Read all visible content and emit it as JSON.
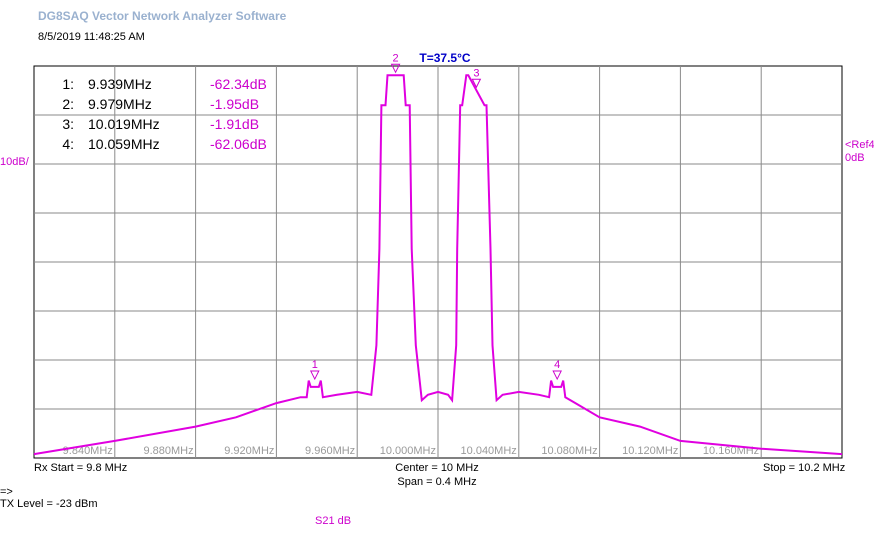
{
  "app_title": "DG8SAQ Vector Network Analyzer Software",
  "timestamp": "8/5/2019   11:48:25 AM",
  "temperature": "T=37.5°C",
  "scale_label": "10dB/",
  "ref_label": "<Ref4",
  "ref_value": "0dB",
  "markers": [
    {
      "num": "1:",
      "freq": "9.939MHz",
      "value": "-62.34dB",
      "label": "1",
      "x_mhz": 9.939
    },
    {
      "num": "2:",
      "freq": "9.979MHz",
      "value": "-1.95dB",
      "label": "2",
      "x_mhz": 9.979
    },
    {
      "num": "3:",
      "freq": "10.019MHz",
      "value": "-1.91dB",
      "label": "3",
      "x_mhz": 10.019
    },
    {
      "num": "4:",
      "freq": "10.059MHz",
      "value": "-62.06dB",
      "label": "4",
      "x_mhz": 10.059
    }
  ],
  "x_ticks": [
    "9.840MHz",
    "9.880MHz",
    "9.920MHz",
    "9.960MHz",
    "10.000MHz",
    "10.040MHz",
    "10.080MHz",
    "10.120MHz",
    "10.160MHz"
  ],
  "footer": {
    "rx_start": "Rx Start = 9.8 MHz",
    "center": "Center = 10 MHz",
    "span": "Span = 0.4 MHz",
    "stop": "Stop = 10.2 MHz",
    "arrow": "=>",
    "tx_level": "TX Level = -23 dBm",
    "trace_label": "S21  dB"
  },
  "colors": {
    "trace": "#e000e0",
    "grid": "#8a8a8a",
    "marker_text": "#cc00cc",
    "temp_text": "#0000c8"
  },
  "chart_data": {
    "type": "line",
    "xlabel": "",
    "ylabel": "",
    "x_range_mhz": [
      9.8,
      10.2
    ],
    "y_range_db": [
      -80,
      0
    ],
    "y_div_db": 10,
    "grid": true,
    "series": [
      {
        "x_mhz": [
          9.8,
          9.84,
          9.88,
          9.9,
          9.92,
          9.932,
          9.935,
          9.936,
          9.937,
          9.941,
          9.942,
          9.943,
          9.95,
          9.96,
          9.967,
          9.9695,
          9.971,
          9.972,
          9.974,
          9.975,
          9.983,
          9.984,
          9.986,
          9.987,
          9.989,
          9.992,
          9.995,
          10.0,
          10.005,
          10.007,
          10.009,
          10.0095,
          10.011,
          10.012,
          10.014,
          10.015,
          10.023,
          10.024,
          10.026,
          10.027,
          10.029,
          10.032,
          10.04,
          10.05,
          10.055,
          10.056,
          10.057,
          10.061,
          10.062,
          10.063,
          10.068,
          10.08,
          10.1,
          10.12,
          10.16,
          10.2
        ],
        "y_db": [
          -79.2,
          -76.5,
          -73.6,
          -71.7,
          -68.8,
          -67.6,
          -67.6,
          -64.2,
          -65.5,
          -65.5,
          -64.2,
          -67.6,
          -67.1,
          -66.5,
          -67.1,
          -57.0,
          -37.3,
          -8.0,
          -8.0,
          -1.9,
          -1.9,
          -8.0,
          -8.0,
          -37.3,
          -57.0,
          -68.2,
          -67.1,
          -66.5,
          -67.1,
          -68.2,
          -57.0,
          -37.3,
          -8.0,
          -8.0,
          -1.9,
          -1.9,
          -8.0,
          -8.0,
          -37.3,
          -57.0,
          -68.2,
          -67.1,
          -66.5,
          -67.1,
          -67.6,
          -64.2,
          -65.5,
          -65.5,
          -64.2,
          -67.6,
          -68.8,
          -71.7,
          -73.6,
          -76.5,
          -78.1,
          -79.2
        ]
      }
    ]
  }
}
